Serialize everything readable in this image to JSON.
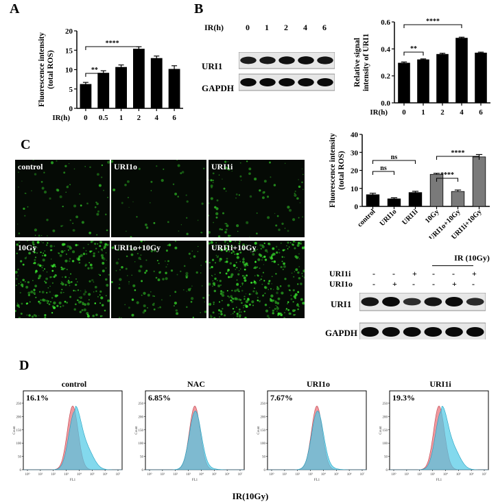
{
  "panels": {
    "A": "A",
    "B": "B",
    "C": "C",
    "D": "D"
  },
  "chart_data": [
    {
      "id": "A",
      "type": "bar",
      "ylabel": "Fluorescence intensity\n(total ROS)",
      "xlabel": "IR(h)",
      "categories": [
        "0",
        "0.5",
        "1",
        "2",
        "4",
        "6"
      ],
      "values": [
        6.2,
        9.1,
        10.6,
        15.3,
        12.9,
        10.1
      ],
      "errors": [
        0.5,
        0.6,
        0.6,
        0.6,
        0.6,
        0.9
      ],
      "ylim": [
        0,
        20
      ],
      "yticks": [
        "0",
        "5",
        "10",
        "15",
        "20"
      ],
      "bar_color": "#000000",
      "significance": [
        {
          "label": "**",
          "from": 0,
          "to": 1
        },
        {
          "label": "****",
          "from": 0,
          "to": 3
        }
      ]
    },
    {
      "id": "B",
      "type": "bar",
      "ylabel": "Relative signal\nintensity of URI1",
      "xlabel": "IR(h)",
      "categories": [
        "0",
        "1",
        "2",
        "4",
        "6"
      ],
      "values": [
        0.295,
        0.32,
        0.36,
        0.48,
        0.37
      ],
      "errors": [
        0.008,
        0.006,
        0.008,
        0.007,
        0.006
      ],
      "ylim": [
        0.0,
        0.6
      ],
      "yticks": [
        "0.0",
        "0.2",
        "0.4",
        "0.6"
      ],
      "bar_color": "#000000",
      "significance": [
        {
          "label": "**",
          "from": 0,
          "to": 1
        },
        {
          "label": "****",
          "from": 0,
          "to": 3
        }
      ]
    },
    {
      "id": "C",
      "type": "bar",
      "ylabel": "Fluorescence intensity\n(total ROS)",
      "categories": [
        "control",
        "URI1o",
        "URI1i",
        "10Gy",
        "URI1o+10Gy",
        "URI1i+10Gy"
      ],
      "values": [
        6.5,
        4.2,
        7.7,
        17.8,
        8.3,
        27.5
      ],
      "errors": [
        0.8,
        0.6,
        0.7,
        0.6,
        0.8,
        1.3
      ],
      "ylim": [
        0,
        40
      ],
      "yticks": [
        "0",
        "10",
        "20",
        "30",
        "40"
      ],
      "bar_colors": [
        "#000000",
        "#000000",
        "#000000",
        "#7a7a7a",
        "#7a7a7a",
        "#7a7a7a"
      ],
      "significance": [
        {
          "label": "ns",
          "from": 0,
          "to": 1
        },
        {
          "label": "ns",
          "from": 0,
          "to": 2
        },
        {
          "label": "****",
          "from": 3,
          "to": 4
        },
        {
          "label": "****",
          "from": 3,
          "to": 5
        }
      ]
    }
  ],
  "blotB": {
    "header_label": "IR(h)",
    "lanes": [
      "0",
      "1",
      "2",
      "4",
      "6"
    ],
    "rows": [
      {
        "label": "URI1",
        "intensities": [
          0.75,
          0.8,
          0.9,
          0.95,
          0.85
        ]
      },
      {
        "label": "GAPDH",
        "intensities": [
          1,
          1,
          1,
          1,
          1
        ]
      }
    ]
  },
  "blotC": {
    "group_label": "IR (10Gy)",
    "cond_rows": [
      {
        "label": "URI1i",
        "marks": [
          "-",
          "-",
          "+",
          "-",
          "-",
          "+"
        ]
      },
      {
        "label": "URI1o",
        "marks": [
          "-",
          "+",
          "-",
          "-",
          "+",
          "-"
        ]
      }
    ],
    "rows": [
      {
        "label": "URI1",
        "intensities": [
          0.85,
          1.0,
          0.5,
          0.85,
          1.0,
          0.55
        ]
      },
      {
        "label": "GAPDH",
        "intensities": [
          1,
          1,
          1,
          1,
          1,
          1
        ]
      }
    ]
  },
  "micrographs": [
    {
      "label": "control"
    },
    {
      "label": "URI1o"
    },
    {
      "label": "URI1i"
    },
    {
      "label": "10Gy"
    },
    {
      "label": "URI1o+10Gy"
    },
    {
      "label": "URI1i+10Gy"
    }
  ],
  "flow": {
    "xlabel": "IR(10Gy)",
    "axis_ylabel": "Count",
    "axis_xlabel": "FL1",
    "yticks": [
      "0",
      "50",
      "100",
      "150",
      "200",
      "250"
    ],
    "xticks": [
      "10⁰",
      "10¹",
      "10²",
      "10³",
      "10⁴",
      "10⁵",
      "10⁶",
      "10⁷"
    ],
    "plots": [
      {
        "title": "control",
        "percent": "16.1%"
      },
      {
        "title": "NAC",
        "percent": "6.85%"
      },
      {
        "title": "URI1o",
        "percent": "7.67%"
      },
      {
        "title": "URI1i",
        "percent": "19.3%"
      }
    ],
    "colors": {
      "control_fill": "#e8757d",
      "sample_fill": "#4fc9e6"
    }
  }
}
